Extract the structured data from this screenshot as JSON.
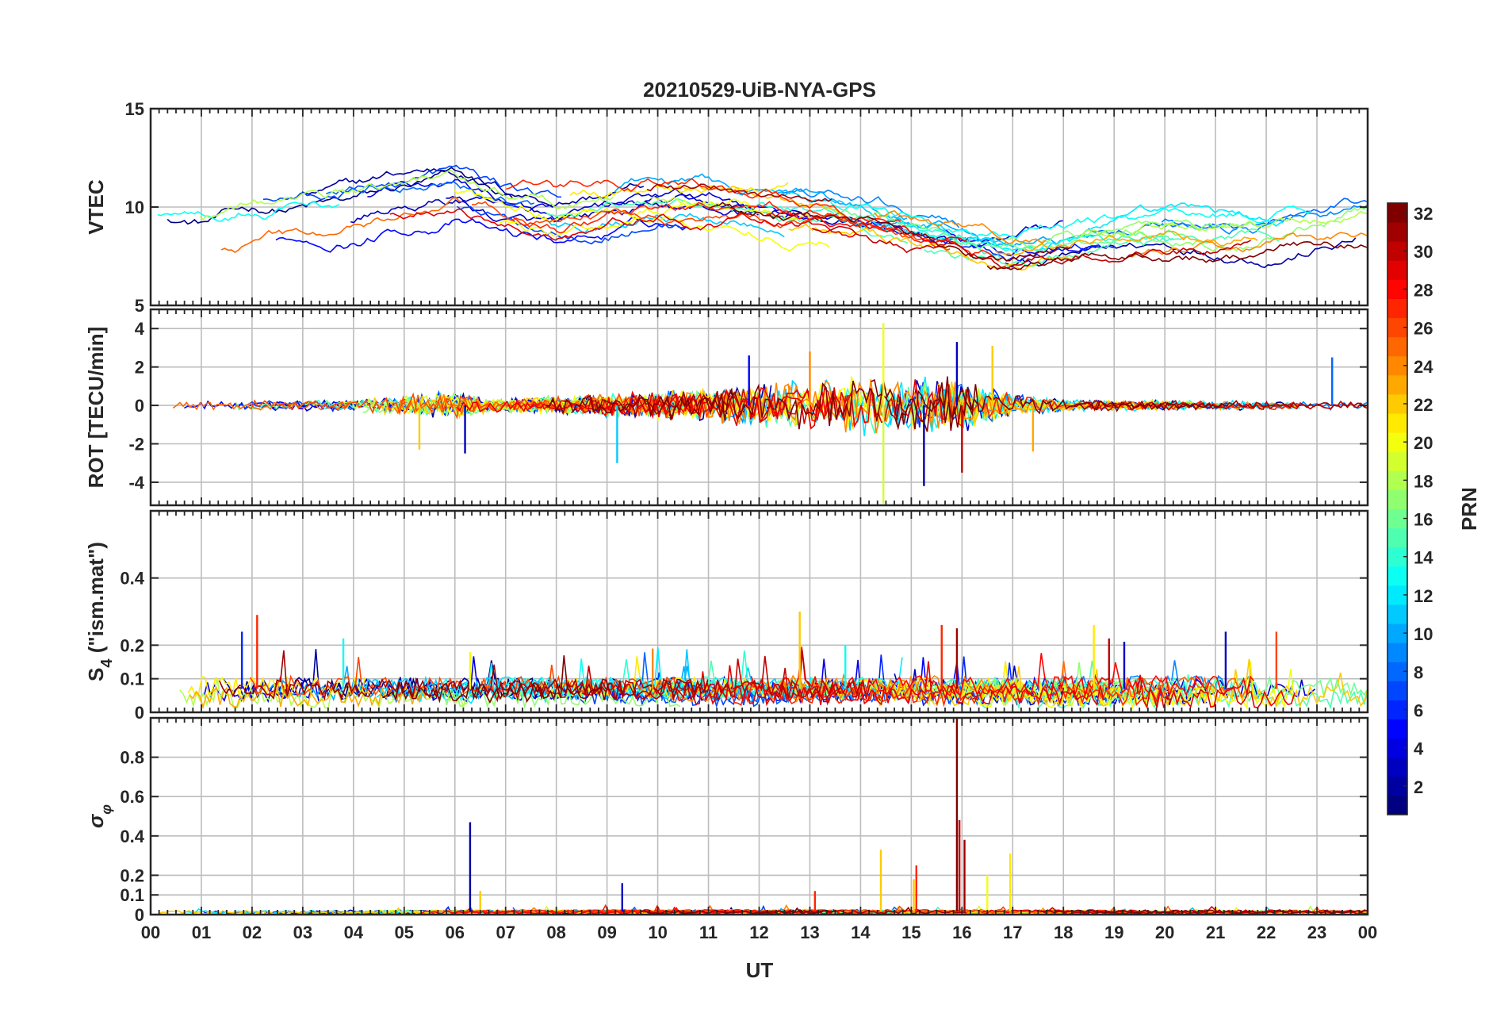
{
  "figure": {
    "title": "20210529-UiB-NYA-GPS",
    "xlabel": "UT"
  },
  "chart_data": {
    "type": "line",
    "title": "20210529-UiB-NYA-GPS",
    "xlabel": "UT",
    "x_range": [
      0,
      24
    ],
    "x_tick_labels": [
      "00",
      "01",
      "02",
      "03",
      "04",
      "05",
      "06",
      "07",
      "08",
      "09",
      "10",
      "11",
      "12",
      "13",
      "14",
      "15",
      "16",
      "17",
      "18",
      "19",
      "20",
      "21",
      "22",
      "23",
      "00"
    ],
    "series_color_by": "PRN",
    "panels": [
      {
        "id": "vtec",
        "ylabel": "VTEC",
        "ylim": [
          5,
          15
        ],
        "yticks": [
          5,
          10,
          15
        ],
        "ytick_labels": [
          "5",
          "10",
          "15"
        ],
        "grid": true,
        "envelope": [
          [
            0,
            9.0
          ],
          [
            1,
            8.8
          ],
          [
            2,
            9.4
          ],
          [
            3,
            9.6
          ],
          [
            4,
            9.8
          ],
          [
            5,
            10.4
          ],
          [
            6,
            10.8
          ],
          [
            7,
            9.8
          ],
          [
            8,
            9.4
          ],
          [
            9,
            9.8
          ],
          [
            10,
            10.2
          ],
          [
            11,
            10.0
          ],
          [
            12,
            9.8
          ],
          [
            13,
            9.6
          ],
          [
            14,
            9.2
          ],
          [
            15,
            8.6
          ],
          [
            16,
            8.0
          ],
          [
            17,
            7.6
          ],
          [
            18,
            8.0
          ],
          [
            19,
            8.3
          ],
          [
            20,
            8.6
          ],
          [
            21,
            8.6
          ],
          [
            22,
            8.6
          ],
          [
            23,
            9.0
          ],
          [
            24,
            9.4
          ]
        ],
        "envelope_spread": 1.6,
        "series_count": 32,
        "spikes": []
      },
      {
        "id": "rot",
        "ylabel": "ROT [TECU/min]",
        "ylim": [
          -5.2,
          5.0
        ],
        "yticks": [
          -4,
          -2,
          0,
          2,
          4
        ],
        "ytick_labels": [
          "-4",
          "-2",
          "0",
          "2",
          "4"
        ],
        "grid": true,
        "baseline": 0,
        "activity": [
          [
            0,
            0.3
          ],
          [
            4,
            0.4
          ],
          [
            5,
            0.8
          ],
          [
            6,
            1.0
          ],
          [
            7,
            0.5
          ],
          [
            9,
            0.8
          ],
          [
            11,
            1.2
          ],
          [
            12,
            1.5
          ],
          [
            13,
            1.8
          ],
          [
            14,
            2.2
          ],
          [
            15,
            2.0
          ],
          [
            16,
            2.0
          ],
          [
            17,
            0.8
          ],
          [
            18,
            0.4
          ],
          [
            24,
            0.3
          ]
        ],
        "series_count": 32,
        "spikes": [
          [
            14.45,
            4.3,
            20
          ],
          [
            14.45,
            -5.1,
            19
          ],
          [
            15.25,
            -4.2,
            2
          ],
          [
            15.9,
            3.3,
            3
          ],
          [
            16.0,
            -3.5,
            30
          ],
          [
            13.0,
            2.8,
            24
          ],
          [
            11.8,
            2.6,
            5
          ],
          [
            9.2,
            -3.0,
            11
          ],
          [
            6.2,
            -2.5,
            3
          ],
          [
            5.3,
            -2.3,
            22
          ],
          [
            23.3,
            2.5,
            8
          ],
          [
            16.6,
            3.1,
            22
          ],
          [
            17.4,
            -2.4,
            23
          ]
        ]
      },
      {
        "id": "s4",
        "ylabel": "S4 (\"ism.mat\")",
        "ylim": [
          0,
          0.6
        ],
        "yticks": [
          0,
          0.1,
          0.2,
          0.4
        ],
        "ytick_labels": [
          "0",
          "0.1",
          "0.2",
          "0.4"
        ],
        "grid": true,
        "baseline": 0.07,
        "activity": [
          [
            0,
            0.03
          ],
          [
            24,
            0.03
          ]
        ],
        "series_count": 32,
        "spikes": [
          [
            2.1,
            0.29,
            27
          ],
          [
            1.8,
            0.24,
            6
          ],
          [
            3.8,
            0.22,
            13
          ],
          [
            12.8,
            0.3,
            22
          ],
          [
            15.6,
            0.26,
            27
          ],
          [
            15.9,
            0.25,
            31
          ],
          [
            18.6,
            0.26,
            21
          ],
          [
            18.9,
            0.22,
            30
          ],
          [
            19.2,
            0.21,
            3
          ],
          [
            21.2,
            0.24,
            3
          ],
          [
            22.2,
            0.24,
            26
          ],
          [
            13.7,
            0.2,
            13
          ],
          [
            9.9,
            0.19,
            24
          ],
          [
            6.3,
            0.18,
            20
          ]
        ]
      },
      {
        "id": "sigma",
        "ylabel": "σφ",
        "ylim": [
          0,
          1.0
        ],
        "yticks": [
          0,
          0.1,
          0.2,
          0.4,
          0.6,
          0.8
        ],
        "ytick_labels": [
          "0",
          "0.1",
          "0.2",
          "0.4",
          "0.6",
          "0.8"
        ],
        "grid": true,
        "baseline": 0.015,
        "activity": [
          [
            0,
            0.008
          ],
          [
            24,
            0.008
          ]
        ],
        "series_count": 32,
        "spikes": [
          [
            15.9,
            1.0,
            32
          ],
          [
            15.95,
            0.48,
            30
          ],
          [
            16.05,
            0.38,
            31
          ],
          [
            6.3,
            0.47,
            2
          ],
          [
            14.4,
            0.33,
            22
          ],
          [
            15.1,
            0.25,
            27
          ],
          [
            15.05,
            0.18,
            22
          ],
          [
            16.95,
            0.31,
            21
          ],
          [
            16.5,
            0.2,
            20
          ],
          [
            9.3,
            0.16,
            3
          ],
          [
            13.1,
            0.12,
            27
          ],
          [
            6.5,
            0.12,
            22
          ]
        ]
      }
    ],
    "colorbar": {
      "label": "PRN",
      "range": [
        1,
        32
      ],
      "ticks": [
        2,
        4,
        6,
        8,
        10,
        12,
        14,
        16,
        18,
        20,
        22,
        24,
        26,
        28,
        30,
        32
      ],
      "tick_labels": [
        "2",
        "4",
        "6",
        "8",
        "10",
        "12",
        "14",
        "16",
        "18",
        "20",
        "22",
        "24",
        "26",
        "28",
        "30",
        "32"
      ],
      "colormap": "jet"
    }
  }
}
